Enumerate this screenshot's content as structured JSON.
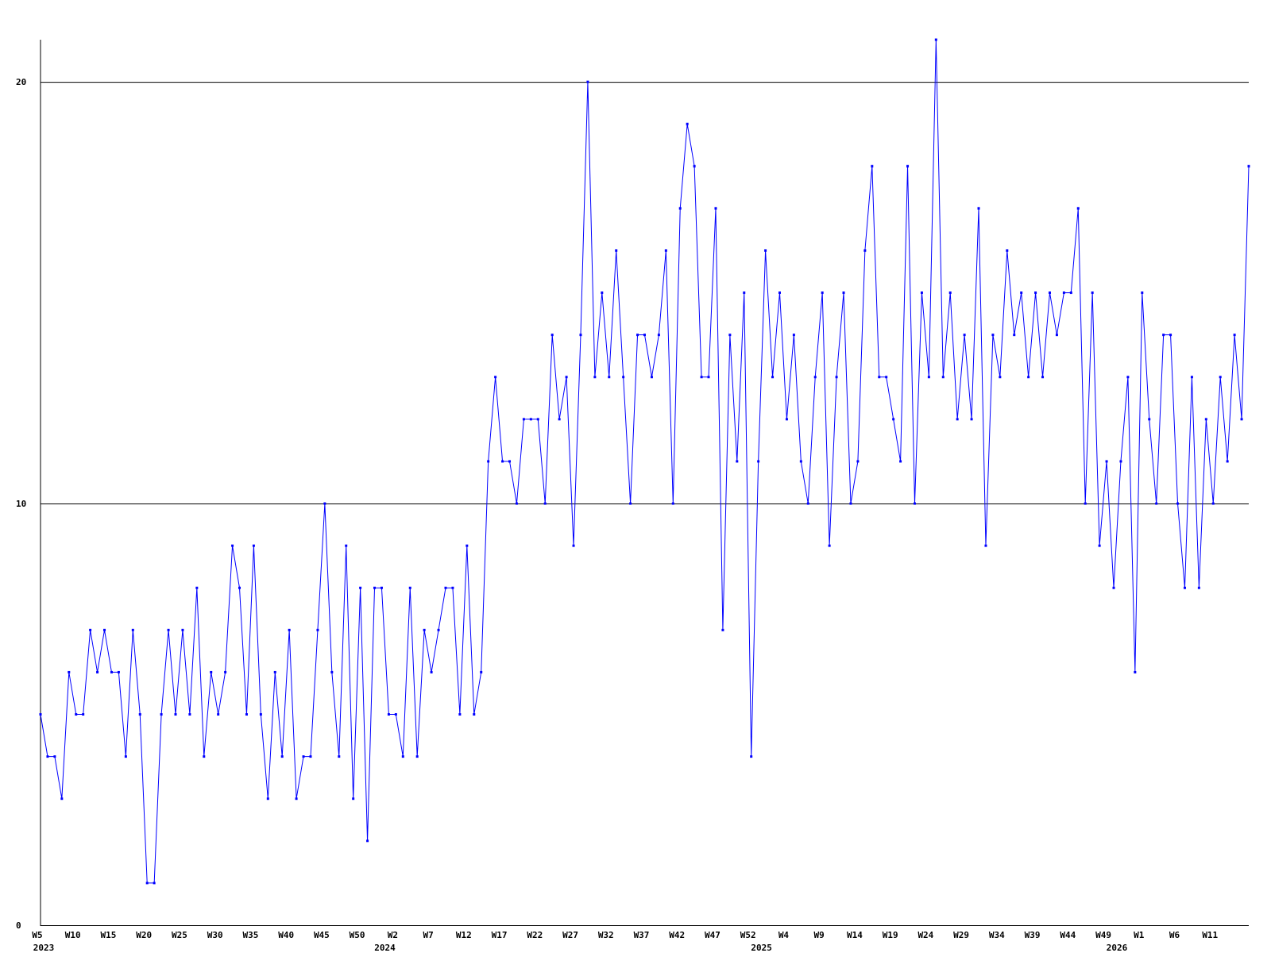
{
  "chart_data": {
    "type": "line",
    "categories": [
      "W5",
      null,
      null,
      null,
      null,
      "W10",
      null,
      null,
      null,
      null,
      "W15",
      null,
      null,
      null,
      null,
      "W20",
      null,
      null,
      null,
      null,
      "W25",
      null,
      null,
      null,
      null,
      "W30",
      null,
      null,
      null,
      null,
      "W35",
      null,
      null,
      null,
      null,
      "W40",
      null,
      null,
      null,
      null,
      "W45",
      null,
      null,
      null,
      null,
      "W50",
      null,
      null,
      null,
      null,
      "W2",
      null,
      null,
      null,
      null,
      "W7",
      null,
      null,
      null,
      null,
      "W12",
      null,
      null,
      null,
      null,
      "W17",
      null,
      null,
      null,
      null,
      "W22",
      null,
      null,
      null,
      null,
      "W27",
      null,
      null,
      null,
      null,
      "W32",
      null,
      null,
      null,
      null,
      "W37",
      null,
      null,
      null,
      null,
      "W42",
      null,
      null,
      null,
      null,
      "W47",
      null,
      null,
      null,
      null,
      "W52",
      null,
      null,
      null,
      null,
      "W4",
      null,
      null,
      null,
      null,
      "W9",
      null,
      null,
      null,
      null,
      "W14",
      null,
      null,
      null,
      null,
      "W19",
      null,
      null,
      null,
      null,
      "W24",
      null,
      null,
      null,
      null,
      "W29",
      null,
      null,
      null,
      null,
      "W34",
      null,
      null,
      null,
      null,
      "W39",
      null,
      null,
      null,
      null,
      "W44",
      null,
      null,
      null,
      null,
      "W49",
      null,
      null,
      null,
      null,
      "W1",
      null,
      null,
      null,
      null,
      "W6",
      null,
      null,
      null,
      null,
      "W11",
      null,
      null,
      null,
      null,
      null
    ],
    "years": [
      "2023",
      null,
      null,
      null,
      null,
      null,
      null,
      null,
      null,
      null,
      null,
      null,
      null,
      null,
      null,
      null,
      null,
      null,
      null,
      null,
      null,
      null,
      null,
      null,
      null,
      null,
      null,
      null,
      null,
      null,
      null,
      null,
      null,
      null,
      null,
      null,
      null,
      null,
      null,
      null,
      null,
      null,
      null,
      null,
      null,
      null,
      null,
      null,
      "2024",
      null,
      null,
      null,
      null,
      null,
      null,
      null,
      null,
      null,
      null,
      null,
      null,
      null,
      null,
      null,
      null,
      null,
      null,
      null,
      null,
      null,
      null,
      null,
      null,
      null,
      null,
      null,
      null,
      null,
      null,
      null,
      null,
      null,
      null,
      null,
      null,
      null,
      null,
      null,
      null,
      null,
      null,
      null,
      null,
      null,
      null,
      null,
      null,
      null,
      null,
      null,
      null,
      "2025",
      null,
      null,
      null,
      null,
      null,
      null,
      null,
      null,
      null,
      null,
      null,
      null,
      null,
      null,
      null,
      null,
      null,
      null,
      null,
      null,
      null,
      null,
      null,
      null,
      null,
      null,
      null,
      null,
      null,
      null,
      null,
      null,
      null,
      null,
      null,
      null,
      null,
      null,
      null,
      null,
      null,
      null,
      null,
      null,
      null,
      null,
      null,
      null,
      null,
      "2026",
      null,
      null,
      null,
      null,
      null,
      null,
      null,
      null,
      null,
      null,
      null,
      null,
      null,
      null,
      null
    ],
    "values": [
      5,
      4,
      4,
      3,
      6,
      5,
      5,
      7,
      6,
      7,
      6,
      6,
      4,
      7,
      5,
      1,
      1,
      5,
      7,
      5,
      7,
      5,
      8,
      4,
      6,
      5,
      6,
      9,
      8,
      5,
      9,
      5,
      3,
      6,
      4,
      7,
      3,
      4,
      4,
      7,
      10,
      6,
      4,
      9,
      3,
      8,
      2,
      8,
      8,
      5,
      5,
      4,
      8,
      4,
      7,
      6,
      7,
      8,
      8,
      5,
      9,
      5,
      6,
      11,
      13,
      11,
      11,
      10,
      12,
      12,
      12,
      10,
      14,
      12,
      13,
      9,
      14,
      20,
      13,
      15,
      13,
      16,
      13,
      10,
      14,
      14,
      13,
      14,
      16,
      10,
      17,
      19,
      18,
      13,
      13,
      17,
      7,
      14,
      11,
      15,
      4,
      11,
      16,
      13,
      15,
      12,
      14,
      11,
      10,
      13,
      15,
      9,
      13,
      15,
      10,
      11,
      16,
      18,
      13,
      13,
      12,
      11,
      18,
      10,
      15,
      13,
      21,
      13,
      15,
      12,
      14,
      12,
      17,
      9,
      14,
      13,
      16,
      14,
      15,
      13,
      15,
      13,
      15,
      14,
      15,
      15,
      17,
      10,
      15,
      9,
      11,
      8,
      11,
      13,
      6,
      15,
      12,
      10,
      14,
      14,
      10,
      8,
      13,
      8,
      12,
      10,
      13,
      11,
      14,
      12,
      18
    ],
    "color": "#0000ff",
    "ylim": [
      0,
      21
    ],
    "yticks": [
      0,
      10,
      20
    ],
    "grid": true
  }
}
